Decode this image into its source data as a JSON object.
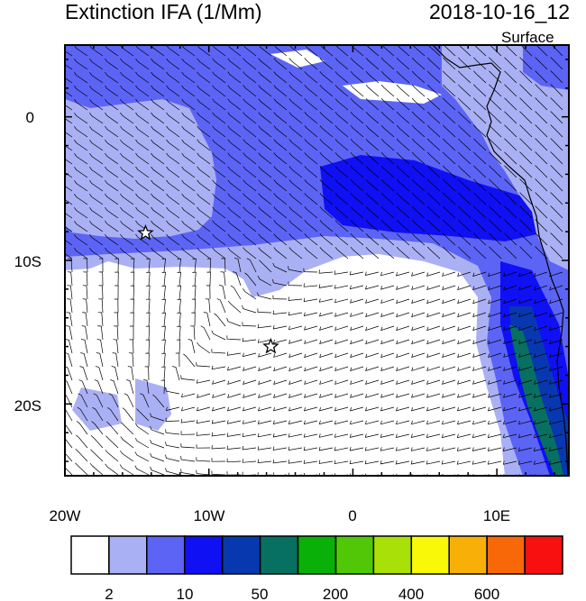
{
  "header": {
    "title": "Extinction IFA (1/Mm)",
    "datetime": "2018-10-16_12",
    "level": "Surface"
  },
  "axes": {
    "x_tick_labels": [
      "20W",
      "10W",
      "0",
      "10E"
    ],
    "y_tick_labels": [
      "0",
      "10S",
      "20S"
    ],
    "lon_range": [
      -20,
      15
    ],
    "lat_range": [
      -25,
      5
    ]
  },
  "colorbar": {
    "colors": [
      "#ffffff",
      "#aab0f4",
      "#5c64f6",
      "#1010f4",
      "#0838b0",
      "#087060",
      "#08b008",
      "#50c808",
      "#a8e008",
      "#f8f808",
      "#f8b008",
      "#f86808",
      "#f81010"
    ],
    "labels": [
      "2",
      "10",
      "50",
      "200",
      "400",
      "600"
    ]
  },
  "markers": [
    {
      "name": "star",
      "lon": -14.4,
      "lat": -8.1
    },
    {
      "name": "star",
      "lon": -5.7,
      "lat": -16.0
    }
  ]
}
